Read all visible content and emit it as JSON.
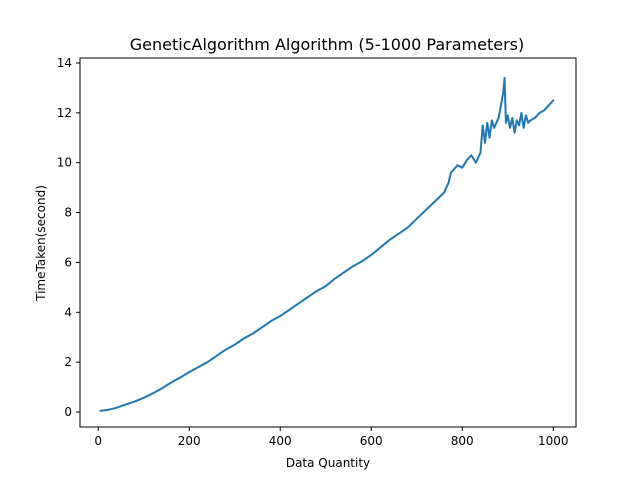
{
  "chart_data": {
    "type": "line",
    "title": "GeneticAlgorithm Algorithm (5-1000 Parameters)",
    "xlabel": "Data Quantity",
    "ylabel": "TimeTaken(second)",
    "xlim": [
      -40,
      1050
    ],
    "ylim": [
      -0.6,
      14.2
    ],
    "xticks": [
      0,
      200,
      400,
      600,
      800,
      1000
    ],
    "yticks": [
      0,
      2,
      4,
      6,
      8,
      10,
      12,
      14
    ],
    "grid": false,
    "color": "#1f77b4",
    "series": [
      {
        "x": [
          5,
          20,
          40,
          60,
          80,
          100,
          120,
          140,
          160,
          180,
          200,
          220,
          240,
          260,
          280,
          300,
          320,
          340,
          360,
          380,
          400,
          420,
          440,
          460,
          480,
          500,
          520,
          540,
          560,
          580,
          600,
          620,
          640,
          660,
          680,
          700,
          720,
          740,
          760,
          770,
          775,
          780,
          790,
          800,
          810,
          820,
          830,
          840,
          845,
          850,
          855,
          860,
          865,
          870,
          875,
          880,
          885,
          890,
          893,
          896,
          900,
          905,
          910,
          915,
          920,
          925,
          930,
          935,
          940,
          945,
          950,
          960,
          970,
          980,
          990,
          1000
        ],
        "y": [
          0.05,
          0.08,
          0.17,
          0.3,
          0.42,
          0.57,
          0.75,
          0.95,
          1.18,
          1.38,
          1.6,
          1.8,
          2.0,
          2.25,
          2.5,
          2.7,
          2.95,
          3.15,
          3.4,
          3.65,
          3.85,
          4.1,
          4.35,
          4.6,
          4.85,
          5.05,
          5.35,
          5.6,
          5.85,
          6.05,
          6.3,
          6.6,
          6.9,
          7.15,
          7.4,
          7.75,
          8.1,
          8.45,
          8.8,
          9.2,
          9.6,
          9.7,
          9.9,
          9.8,
          10.1,
          10.3,
          10.0,
          10.4,
          11.5,
          10.8,
          11.6,
          11.0,
          11.7,
          11.4,
          11.6,
          11.8,
          12.3,
          12.8,
          13.4,
          11.6,
          11.9,
          11.4,
          11.8,
          11.2,
          11.7,
          11.5,
          12.0,
          11.4,
          11.9,
          11.6,
          11.7,
          11.8,
          12.0,
          12.1,
          12.3,
          12.5
        ]
      }
    ]
  }
}
